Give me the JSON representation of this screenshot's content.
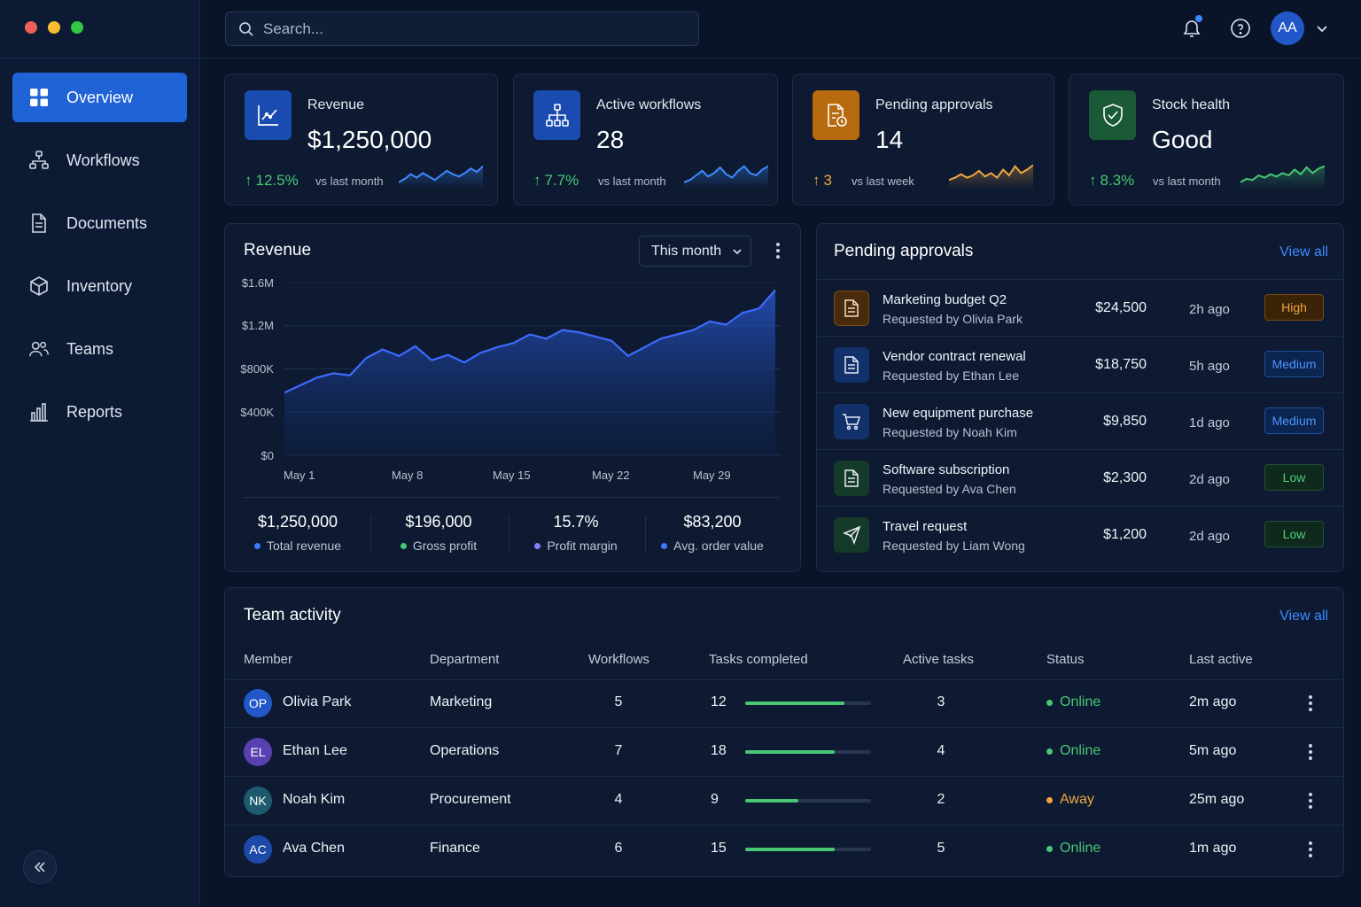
{
  "window": {
    "traffic_colors": [
      "#ee5f57",
      "#f5bd2f",
      "#33c748"
    ]
  },
  "sidebar": {
    "items": [
      {
        "label": "Overview",
        "icon": "grid-icon",
        "active": true
      },
      {
        "label": "Workflows",
        "icon": "workflow-icon",
        "active": false
      },
      {
        "label": "Documents",
        "icon": "document-icon",
        "active": false
      },
      {
        "label": "Inventory",
        "icon": "box-icon",
        "active": false
      },
      {
        "label": "Teams",
        "icon": "users-icon",
        "active": false
      },
      {
        "label": "Reports",
        "icon": "bar-chart-icon",
        "active": false
      }
    ],
    "collapse_icon": "chevrons-left-icon"
  },
  "topbar": {
    "search_placeholder": "Search...",
    "has_notification": true,
    "user_initials": "AA"
  },
  "stats": [
    {
      "label": "Revenue",
      "value": "$1,250,000",
      "delta": "12.5%",
      "compare": "vs last month",
      "icon": "chart-line-icon",
      "color": "#3d8bff",
      "spark": [
        0.2,
        0.35,
        0.55,
        0.4,
        0.6,
        0.45,
        0.3,
        0.5,
        0.7,
        0.55,
        0.45,
        0.6,
        0.8,
        0.65,
        0.9
      ]
    },
    {
      "label": "Active workflows",
      "value": "28",
      "delta": "7.7%",
      "compare": "vs last month",
      "icon": "workflow-icon",
      "color": "#3d8bff",
      "spark": [
        0.2,
        0.3,
        0.5,
        0.7,
        0.45,
        0.6,
        0.85,
        0.55,
        0.4,
        0.7,
        0.9,
        0.6,
        0.5,
        0.75,
        0.9
      ]
    },
    {
      "label": "Pending approvals",
      "value": "14",
      "delta": "3",
      "compare": "vs last week",
      "icon": "document-clock-icon",
      "color": "#f0a640",
      "spark": [
        0.3,
        0.4,
        0.55,
        0.4,
        0.5,
        0.7,
        0.45,
        0.6,
        0.4,
        0.75,
        0.5,
        0.9,
        0.6,
        0.75,
        0.95
      ]
    },
    {
      "label": "Stock health",
      "value": "Good",
      "delta": "8.3%",
      "compare": "vs last month",
      "icon": "shield-check-icon",
      "color": "#48c774",
      "spark": [
        0.2,
        0.35,
        0.3,
        0.5,
        0.4,
        0.55,
        0.45,
        0.6,
        0.5,
        0.75,
        0.55,
        0.85,
        0.6,
        0.8,
        0.9
      ]
    }
  ],
  "revenue_panel": {
    "title": "Revenue",
    "period": "This month",
    "summary": [
      {
        "value": "$1,250,000",
        "label": "Total revenue",
        "dot_color": "#3d7bff"
      },
      {
        "value": "$196,000",
        "label": "Gross profit",
        "dot_color": "#48c774"
      },
      {
        "value": "15.7%",
        "label": "Profit margin",
        "dot_color": "#8a7bff"
      },
      {
        "value": "$83,200",
        "label": "Avg. order value",
        "dot_color": "#3d7bff"
      }
    ]
  },
  "chart_data": {
    "type": "area",
    "title": "Revenue",
    "x": [
      "May 1",
      "",
      "",
      "",
      "",
      "",
      "",
      "May 8",
      "",
      "",
      "",
      "",
      "",
      "",
      "May 15",
      "",
      "",
      "",
      "",
      "",
      "",
      "May 22",
      "",
      "",
      "",
      "",
      "",
      "",
      "May 29",
      "",
      ""
    ],
    "xticks": [
      "May 1",
      "May 8",
      "May 15",
      "May 22",
      "May 29"
    ],
    "yticks": [
      "$1.6M",
      "$1.2M",
      "$800K",
      "$400K",
      "$0"
    ],
    "ylim": [
      0,
      1600000
    ],
    "series": [
      {
        "values": [
          580000,
          650000,
          720000,
          760000,
          740000,
          900000,
          980000,
          920000,
          1010000,
          880000,
          930000,
          860000,
          950000,
          1000000,
          1040000,
          1120000,
          1080000,
          1160000,
          1140000,
          1100000,
          1060000,
          920000,
          1000000,
          1080000,
          1120000,
          1160000,
          1240000,
          1210000,
          1320000,
          1360000,
          1530000
        ]
      }
    ],
    "color": "#3d6bff",
    "grid": true
  },
  "approvals": {
    "title": "Pending approvals",
    "view_all": "View all",
    "items": [
      {
        "title": "Marketing budget Q2",
        "requester": "Requested by Olivia Park",
        "amount": "$24,500",
        "time": "2h ago",
        "priority": "High",
        "level": "high",
        "icon": "document-icon",
        "icon_bg": "#4a2a0c",
        "icon_color": "#f0a640"
      },
      {
        "title": "Vendor contract renewal",
        "requester": "Requested by Ethan Lee",
        "amount": "$18,750",
        "time": "5h ago",
        "priority": "Medium",
        "level": "medium",
        "icon": "document-icon",
        "icon_bg": "#12306a",
        "icon_color": "#e6ecf5"
      },
      {
        "title": "New equipment purchase",
        "requester": "Requested by Noah Kim",
        "amount": "$9,850",
        "time": "1d ago",
        "priority": "Medium",
        "level": "medium",
        "icon": "cart-icon",
        "icon_bg": "#12306a",
        "icon_color": "#e6ecf5"
      },
      {
        "title": "Software subscription",
        "requester": "Requested by Ava Chen",
        "amount": "$2,300",
        "time": "2d ago",
        "priority": "Low",
        "level": "low",
        "icon": "document-icon",
        "icon_bg": "#153a29",
        "icon_color": "#e6ecf5"
      },
      {
        "title": "Travel request",
        "requester": "Requested by Liam Wong",
        "amount": "$1,200",
        "time": "2d ago",
        "priority": "Low",
        "level": "low",
        "icon": "plane-icon",
        "icon_bg": "#153a29",
        "icon_color": "#e6ecf5"
      }
    ]
  },
  "team": {
    "title": "Team activity",
    "view_all": "View all",
    "columns": [
      "Member",
      "Department",
      "Workflows",
      "Tasks completed",
      "Active tasks",
      "Status",
      "Last active"
    ],
    "rows": [
      {
        "initials": "OP",
        "name": "Olivia Park",
        "department": "Marketing",
        "workflows": "5",
        "tasks": "12",
        "progress": 0.79,
        "active": "3",
        "status": "Online",
        "status_color": "#48c774",
        "last": "2m ago",
        "avatar_color": "#2157c9"
      },
      {
        "initials": "EL",
        "name": "Ethan Lee",
        "department": "Operations",
        "workflows": "7",
        "tasks": "18",
        "progress": 0.71,
        "active": "4",
        "status": "Online",
        "status_color": "#48c774",
        "last": "5m ago",
        "avatar_color": "#5a3fb0"
      },
      {
        "initials": "NK",
        "name": "Noah Kim",
        "department": "Procurement",
        "workflows": "4",
        "tasks": "9",
        "progress": 0.42,
        "active": "2",
        "status": "Away",
        "status_color": "#f0a640",
        "last": "25m ago",
        "avatar_color": "#1e5a6e"
      },
      {
        "initials": "AC",
        "name": "Ava Chen",
        "department": "Finance",
        "workflows": "6",
        "tasks": "15",
        "progress": 0.71,
        "active": "5",
        "status": "Online",
        "status_color": "#48c774",
        "last": "1m ago",
        "avatar_color": "#1d4aa8"
      }
    ]
  }
}
